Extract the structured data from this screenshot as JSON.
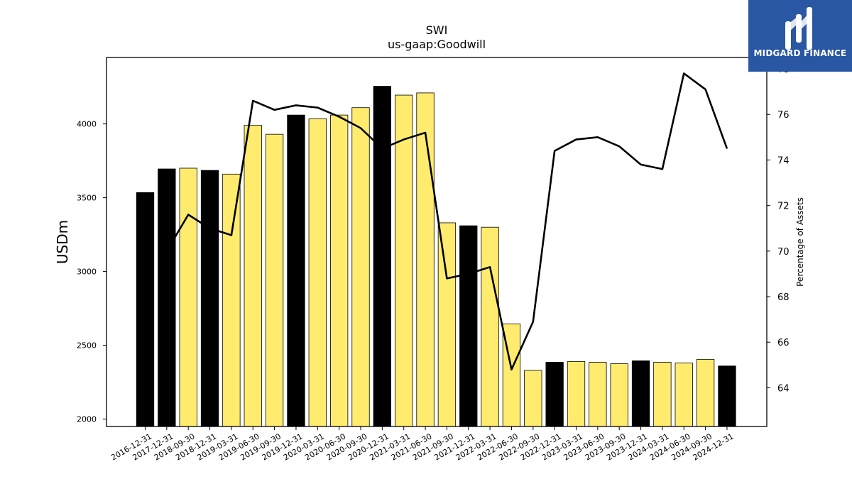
{
  "brand": {
    "name": "MIDGARD FINANCE",
    "background": "#2957a4"
  },
  "chart_data": {
    "type": "bar",
    "title": "SWI",
    "subtitle": "us-gaap:Goodwill",
    "ylabel": "USDm",
    "y2label": "Percentage of Assets",
    "ylim": [
      1950,
      4450
    ],
    "y2lim": [
      62.3,
      78.5
    ],
    "yticks": [
      2000,
      2500,
      3000,
      3500,
      4000
    ],
    "y2ticks": [
      64,
      66,
      68,
      70,
      72,
      74,
      76,
      78
    ],
    "categories": [
      "2016-12-31",
      "2017-12-31",
      "2018-09-30",
      "2018-12-31",
      "2019-03-31",
      "2019-06-30",
      "2019-09-30",
      "2019-12-31",
      "2020-03-31",
      "2020-06-30",
      "2020-09-30",
      "2020-12-31",
      "2021-03-31",
      "2021-06-30",
      "2021-09-30",
      "2021-12-31",
      "2022-03-31",
      "2022-06-30",
      "2022-09-30",
      "2022-12-31",
      "2023-03-31",
      "2023-06-30",
      "2023-09-30",
      "2023-12-31",
      "2024-03-31",
      "2024-06-30",
      "2024-09-30",
      "2024-12-31"
    ],
    "series": [
      {
        "kind": "bar",
        "values": [
          3535,
          3695,
          3700,
          3685,
          3660,
          3990,
          3930,
          4060,
          4035,
          4060,
          4110,
          4255,
          4195,
          4210,
          3330,
          3310,
          3300,
          2645,
          2330,
          2385,
          2390,
          2385,
          2375,
          2395,
          2385,
          2380,
          2405,
          2360
        ],
        "colors": [
          "#000000",
          "#000000",
          "#ffec6e",
          "#000000",
          "#ffec6e",
          "#ffec6e",
          "#ffec6e",
          "#000000",
          "#ffec6e",
          "#ffec6e",
          "#ffec6e",
          "#000000",
          "#ffec6e",
          "#ffec6e",
          "#ffec6e",
          "#000000",
          "#ffec6e",
          "#ffec6e",
          "#ffec6e",
          "#000000",
          "#ffec6e",
          "#ffec6e",
          "#ffec6e",
          "#000000",
          "#ffec6e",
          "#ffec6e",
          "#ffec6e",
          "#000000"
        ]
      },
      {
        "kind": "line",
        "axis": "right",
        "color": "#000000",
        "values": [
          null,
          70.0,
          71.6,
          71.0,
          70.7,
          76.6,
          76.2,
          76.4,
          76.3,
          75.9,
          75.4,
          74.5,
          74.9,
          75.2,
          68.8,
          69.0,
          69.3,
          64.8,
          66.9,
          74.4,
          74.9,
          75.0,
          74.6,
          73.8,
          73.6,
          77.8,
          77.1,
          74.5
        ]
      }
    ],
    "grid": false,
    "legend": "none"
  }
}
